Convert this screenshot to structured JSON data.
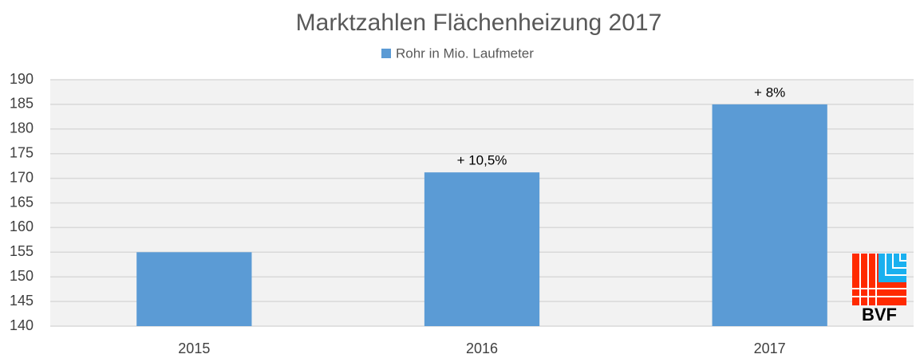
{
  "chart_data": {
    "type": "bar",
    "title": "Marktzahlen Flächenheizung 2017",
    "categories": [
      "2015",
      "2016",
      "2017"
    ],
    "series": [
      {
        "name": "Rohr in Mio. Laufmeter",
        "color": "#5b9bd5",
        "values": [
          155,
          171.2,
          185
        ]
      }
    ],
    "annotations": [
      {
        "x": "2016",
        "text": "+ 10,5%"
      },
      {
        "x": "2017",
        "text": "+ 8%"
      }
    ],
    "ylim": [
      140,
      190
    ],
    "yticks": [
      140,
      145,
      150,
      155,
      160,
      165,
      170,
      175,
      180,
      185,
      190
    ],
    "grid": true,
    "logo": "BVF"
  }
}
